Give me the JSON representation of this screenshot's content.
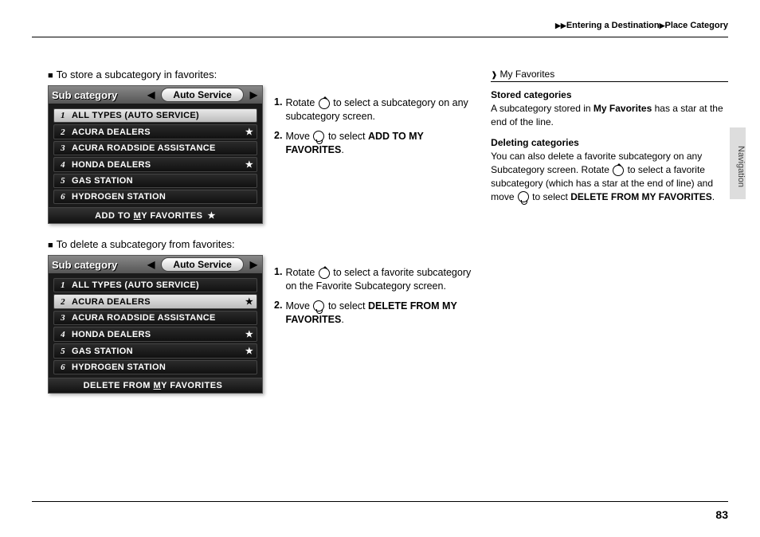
{
  "breadcrumb": {
    "a": "Entering a Destination",
    "b": "Place Category"
  },
  "sidetab": "Navigation",
  "pagenum": "83",
  "sec1": {
    "title": "To store a subcategory in favorites:",
    "screen": {
      "label": "Sub category",
      "pill": "Auto Service",
      "rows": [
        {
          "n": "1",
          "t": "ALL TYPES (AUTO SERVICE)",
          "star": "",
          "sel": true
        },
        {
          "n": "2",
          "t": "ACURA DEALERS",
          "star": "★",
          "sel": false
        },
        {
          "n": "3",
          "t": "ACURA ROADSIDE ASSISTANCE",
          "star": "",
          "sel": false
        },
        {
          "n": "4",
          "t": "HONDA DEALERS",
          "star": "★",
          "sel": false
        },
        {
          "n": "5",
          "t": "GAS STATION",
          "star": "",
          "sel": false
        },
        {
          "n": "6",
          "t": "HYDROGEN STATION",
          "star": "",
          "sel": false
        }
      ],
      "footer_a": "ADD TO ",
      "footer_b": "M",
      "footer_c": "Y FAVORITES",
      "footer_star": "★"
    },
    "steps": [
      {
        "n": "1.",
        "pre": "Rotate ",
        "icon": "rotate",
        "post": " to select a subcategory on any subcategory screen."
      },
      {
        "n": "2.",
        "pre": "Move ",
        "icon": "move",
        "post": " to select ",
        "bold": "ADD TO MY FAVORITES",
        "tail": "."
      }
    ]
  },
  "sec2": {
    "title": "To delete a subcategory from favorites:",
    "screen": {
      "label": "Sub category",
      "pill": "Auto Service",
      "rows": [
        {
          "n": "1",
          "t": "ALL TYPES (AUTO SERVICE)",
          "star": "",
          "sel": false
        },
        {
          "n": "2",
          "t": "ACURA DEALERS",
          "star": "★",
          "sel": true
        },
        {
          "n": "3",
          "t": "ACURA ROADSIDE ASSISTANCE",
          "star": "",
          "sel": false
        },
        {
          "n": "4",
          "t": "HONDA DEALERS",
          "star": "★",
          "sel": false
        },
        {
          "n": "5",
          "t": "GAS STATION",
          "star": "★",
          "sel": false
        },
        {
          "n": "6",
          "t": "HYDROGEN STATION",
          "star": "",
          "sel": false
        }
      ],
      "footer_a": "DELETE FROM ",
      "footer_b": "M",
      "footer_c": "Y FAVORITES",
      "footer_star": ""
    },
    "steps": [
      {
        "n": "1.",
        "pre": "Rotate ",
        "icon": "rotate",
        "post": " to select a favorite subcategory on the Favorite Subcategory screen."
      },
      {
        "n": "2.",
        "pre": "Move ",
        "icon": "move",
        "post": " to select ",
        "bold": "DELETE FROM MY FAVORITES",
        "tail": "."
      }
    ]
  },
  "side": {
    "head": "My Favorites",
    "b1": {
      "h": "Stored categories",
      "t1": "A subcategory stored in ",
      "b": "My Favorites",
      "t2": " has a star at the end of the line."
    },
    "b2": {
      "h": "Deleting categories",
      "t1": "You can also delete a favorite subcategory on any Subcategory screen. Rotate ",
      "t2": " to select a favorite subcategory (which has a star at the end of line) and move ",
      "t3": " to select ",
      "b": "DELETE FROM MY FAVORITES",
      "t4": "."
    }
  }
}
